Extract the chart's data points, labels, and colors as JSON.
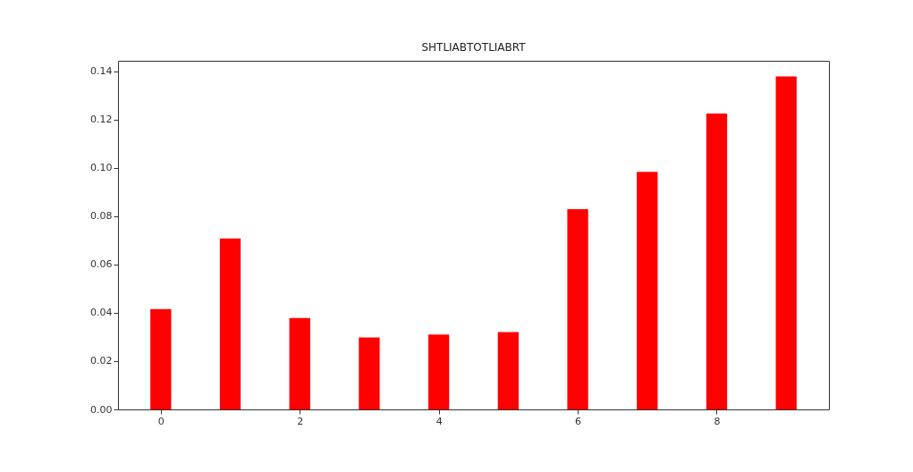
{
  "chart_data": {
    "type": "bar",
    "title": "SHTLIABTOTLIABRT",
    "x": [
      0,
      1,
      2,
      3,
      4,
      5,
      6,
      7,
      8,
      9
    ],
    "values": [
      0.0415,
      0.0708,
      0.0378,
      0.0298,
      0.031,
      0.032,
      0.0829,
      0.0983,
      0.1225,
      0.1378
    ],
    "color": "#ff0000",
    "xlim": [
      -0.615,
      9.615
    ],
    "xticks": [
      0,
      2,
      4,
      6,
      8
    ],
    "ylim": [
      0,
      0.1443
    ],
    "yticks": [
      {
        "value": 0,
        "label": "0.00"
      },
      {
        "value": 0.02,
        "label": "0.02"
      },
      {
        "value": 0.04,
        "label": "0.04"
      },
      {
        "value": 0.06,
        "label": "0.06"
      },
      {
        "value": 0.08,
        "label": "0.08"
      },
      {
        "value": 0.1,
        "label": "0.10"
      },
      {
        "value": 0.12,
        "label": "0.12"
      },
      {
        "value": 0.14,
        "label": "0.14"
      }
    ],
    "grid": false
  }
}
